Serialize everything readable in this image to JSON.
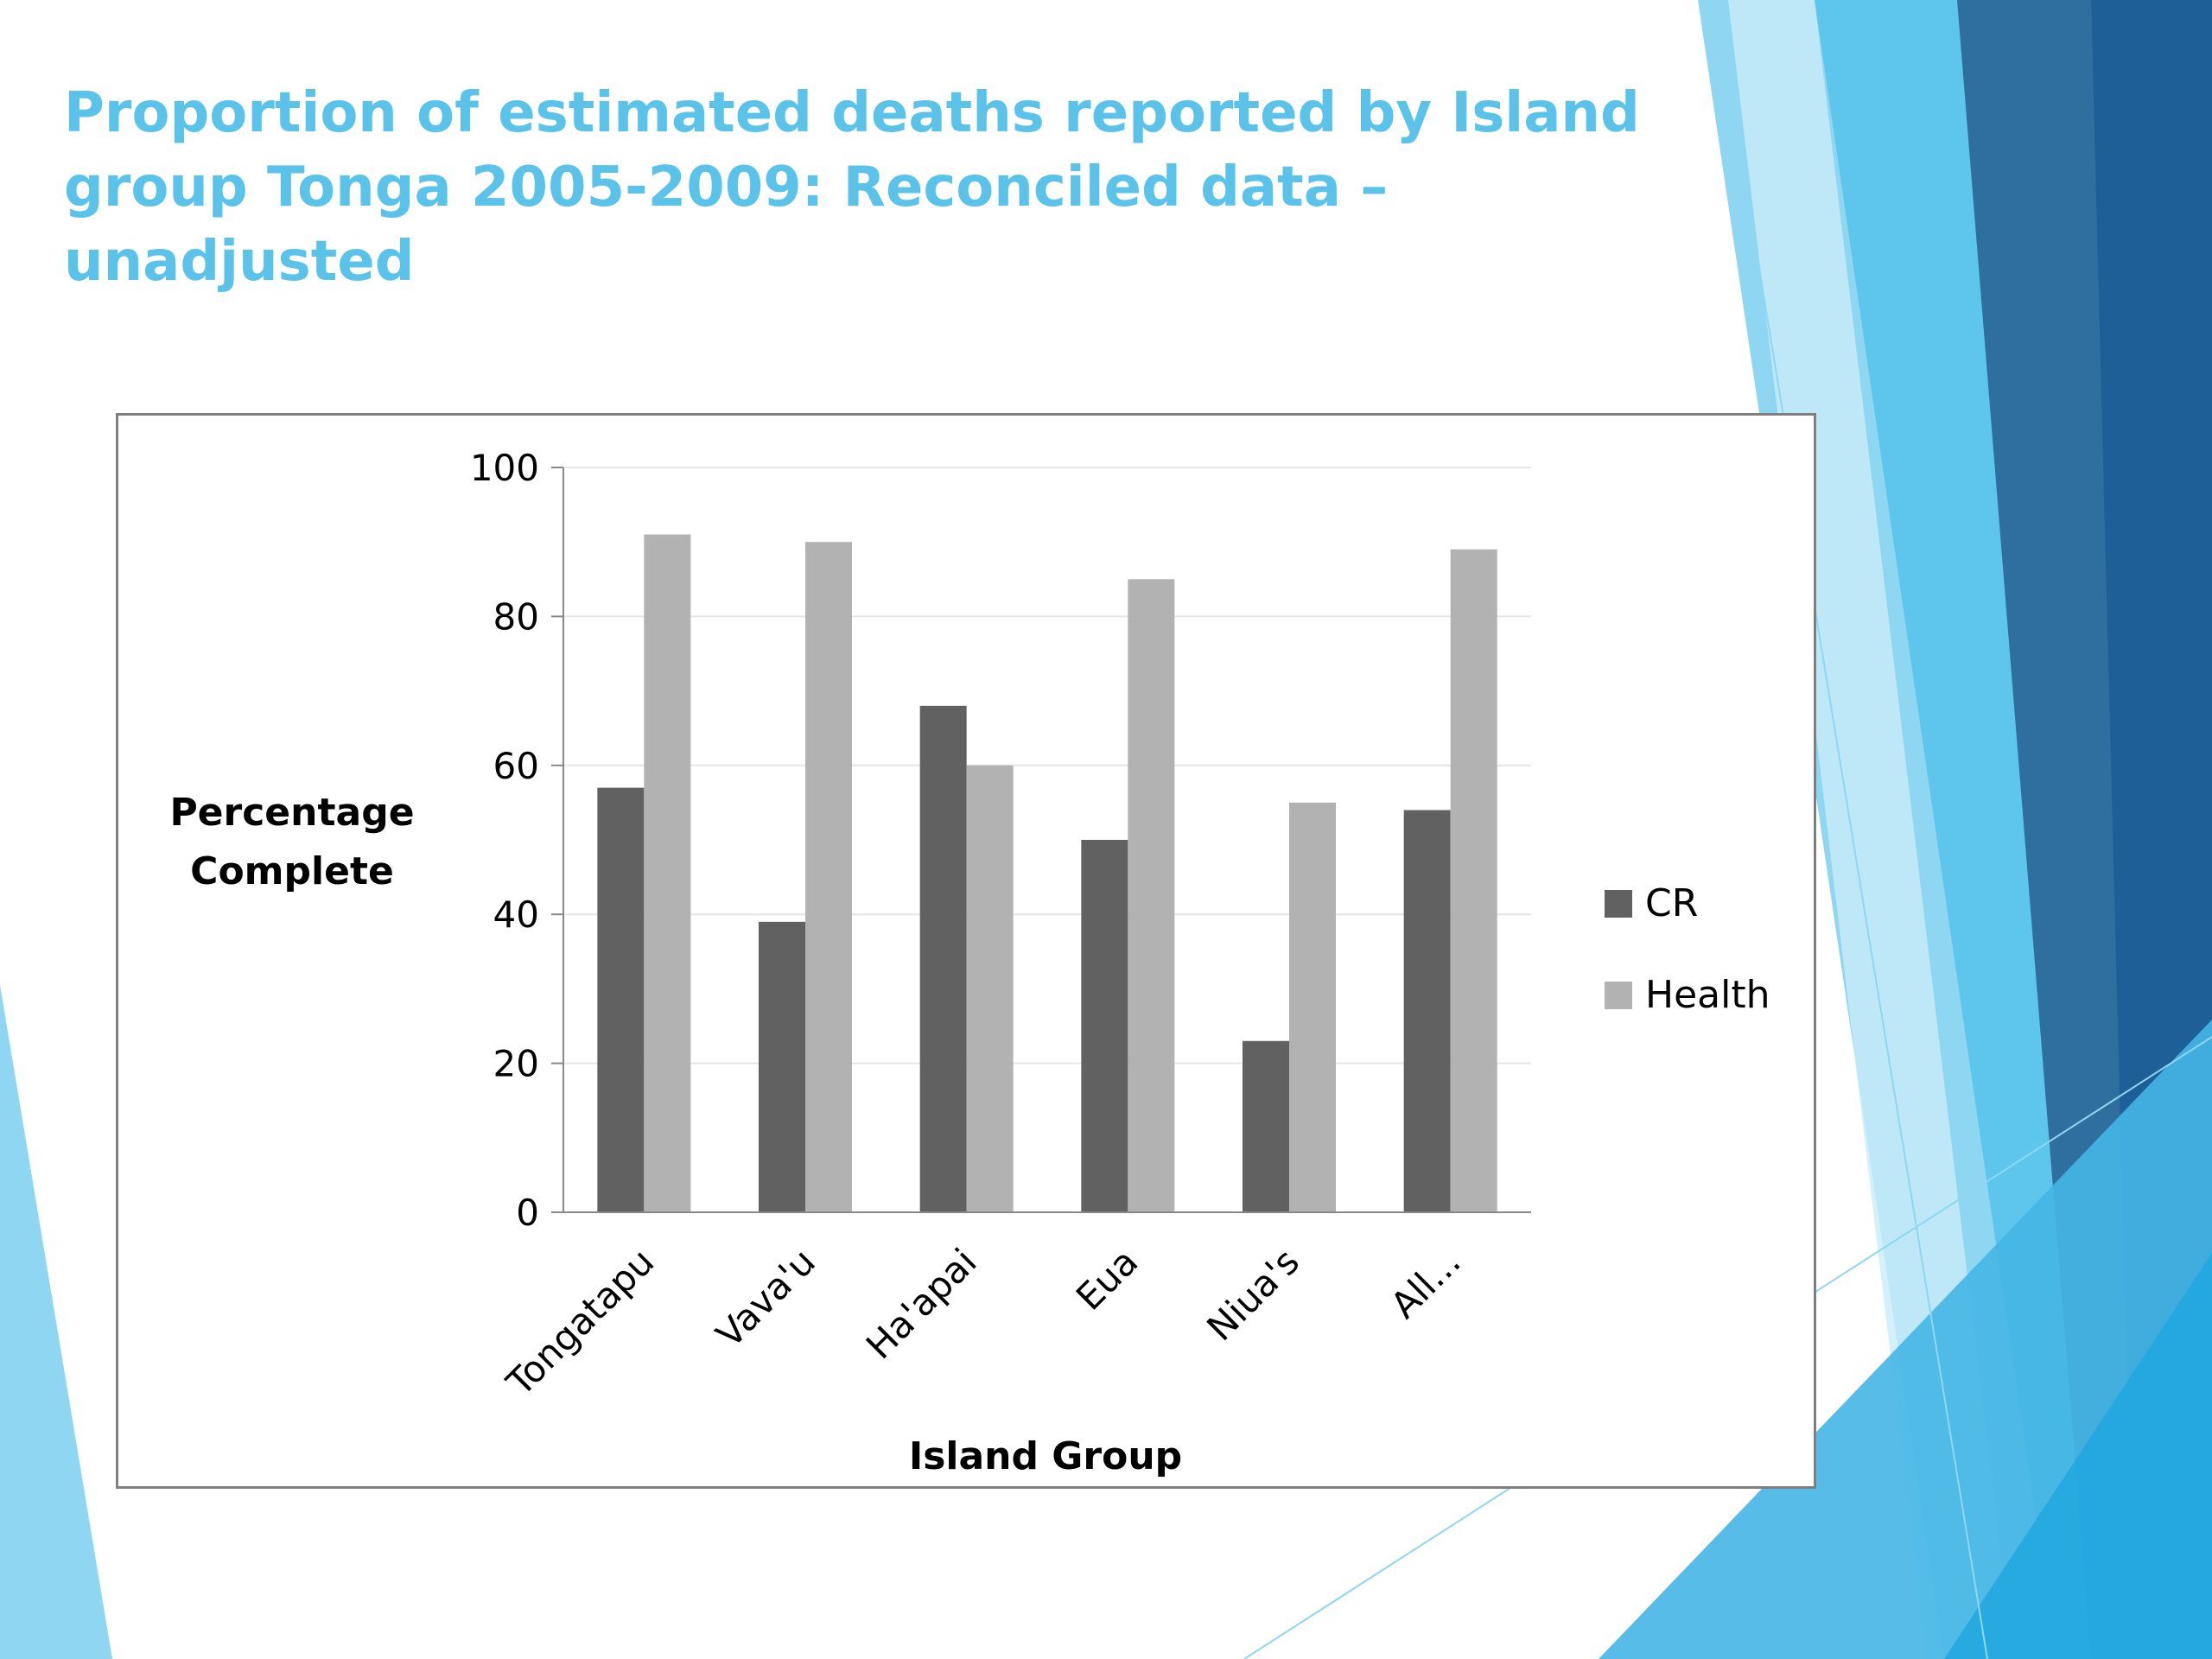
{
  "slide": {
    "title": "Proportion of estimated deaths reported by Island\ngroup Tonga 2005-2009: Reconciled data – unadjusted"
  },
  "chart_data": {
    "type": "bar",
    "title": "",
    "xlabel": "Island Group",
    "ylabel": "Percentage Complete",
    "ylabel_lines": [
      "Percentage",
      "Complete"
    ],
    "categories": [
      "Tongatapu",
      "Vava'u",
      "Ha'apai",
      "Eua",
      "Niua's",
      "All..."
    ],
    "series": [
      {
        "name": "CR",
        "values": [
          57,
          39,
          68,
          50,
          23,
          54
        ],
        "color": "#616161"
      },
      {
        "name": "Health",
        "values": [
          91,
          90,
          60,
          85,
          55,
          89
        ],
        "color": "#b2b2b2"
      }
    ],
    "ylim": [
      0,
      100
    ],
    "yticks": [
      0,
      20,
      40,
      60,
      80,
      100
    ],
    "grid": true,
    "legend": "right"
  },
  "theme": {
    "title_color": "#5bc3e9",
    "accent_light": "#8fd6f3",
    "accent_mid": "#45b6e5",
    "accent_dark": "#2f6f9f",
    "accent_deep": "#1f5f97"
  }
}
